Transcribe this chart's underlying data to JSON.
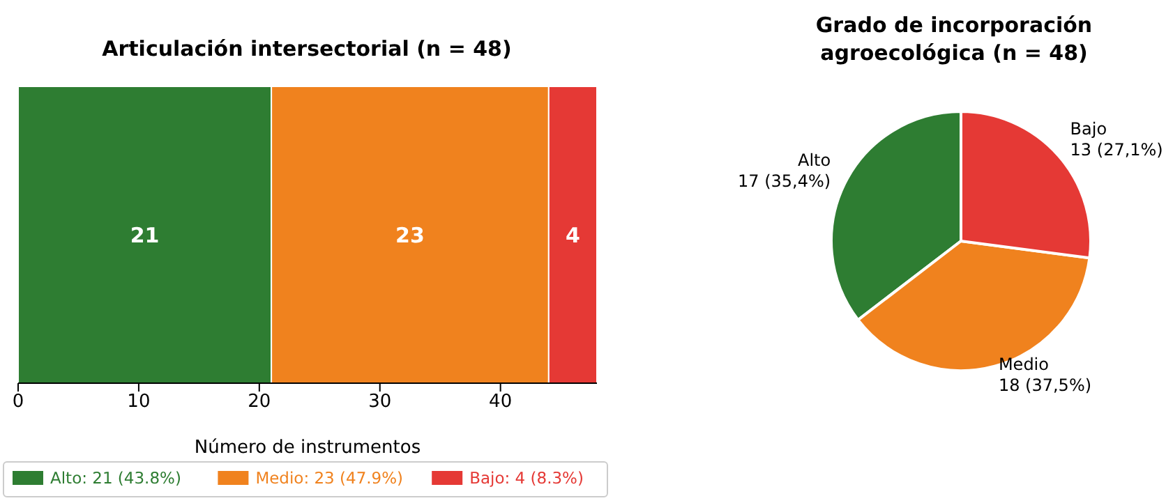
{
  "chart_data": [
    {
      "type": "bar",
      "title": "Articulación intersectorial (n = 48)",
      "orientation": "horizontal",
      "stacked": true,
      "categories": [
        null
      ],
      "xlabel": "Número de instrumentos",
      "xlim": [
        0,
        48
      ],
      "xticks": [
        0,
        10,
        20,
        30,
        40
      ],
      "tick_labels": "x",
      "data_labels": true,
      "legend": "bottom",
      "grid": false,
      "series": [
        {
          "name": "Alto: 21 (43.8%)",
          "color": "#2e7d32",
          "values": [
            21
          ]
        },
        {
          "name": "Medio: 23 (47.9%)",
          "color": "#f0821e",
          "values": [
            23
          ]
        },
        {
          "name": "Bajo: 4 (8.3%)",
          "color": "#e53935",
          "values": [
            4
          ]
        }
      ]
    },
    {
      "type": "pie",
      "title": "Grado de incorporación\nagroecológica (n = 48)",
      "categories": [
        "Alto",
        "Medio",
        "Bajo"
      ],
      "values": [
        17,
        18,
        13
      ],
      "value_labels": [
        "17 (35,4%)",
        "18 (37,5%)",
        "13 (27,1%)"
      ],
      "colors": [
        "#2e7d32",
        "#f0821e",
        "#e53935"
      ],
      "legend": false
    }
  ]
}
